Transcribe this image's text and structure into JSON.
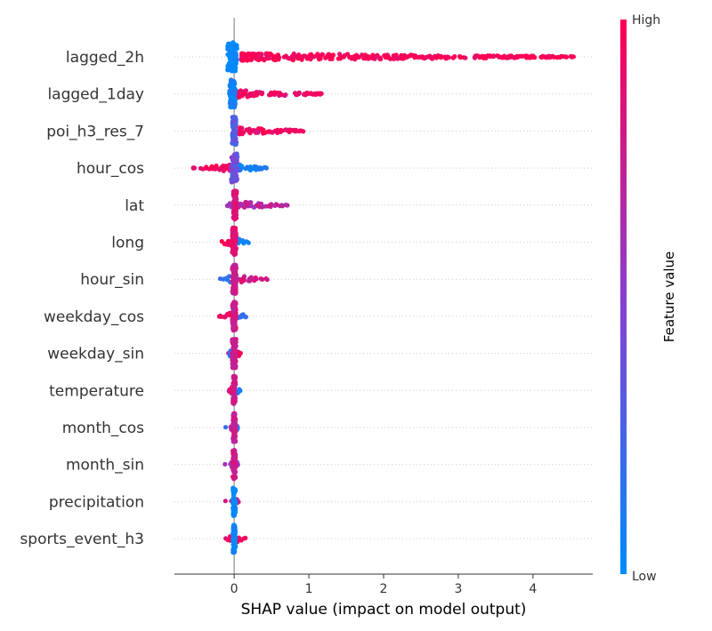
{
  "chart_data": {
    "type": "scatter",
    "subtype": "shap-beeswarm",
    "title": "",
    "xlabel": "SHAP value (impact on model output)",
    "ylabel": "",
    "xlim": [
      -0.8,
      4.8
    ],
    "xticks": [
      0,
      1,
      2,
      3,
      4
    ],
    "grid": false,
    "zero_line": true,
    "colorbar": {
      "label": "Feature value",
      "high_label": "High",
      "low_label": "Low",
      "low_color": "#008bfb",
      "high_color": "#ff0052"
    },
    "features": [
      {
        "name": "lagged_2h",
        "core": [
          -0.15,
          0.1
        ],
        "pos": [
          0.1,
          4.55
        ],
        "neg": null,
        "pos_color": 1.0,
        "neg_color": 0.0,
        "core_color": 0.0,
        "density": 1.0
      },
      {
        "name": "lagged_1day",
        "core": [
          -0.1,
          0.05
        ],
        "pos": [
          0.05,
          1.18
        ],
        "neg": null,
        "pos_color": 0.95,
        "neg_color": 0.0,
        "core_color": 0.05,
        "density": 0.9
      },
      {
        "name": "poi_h3_res_7",
        "core": [
          -0.05,
          0.05
        ],
        "pos": [
          0.05,
          0.95
        ],
        "neg": null,
        "pos_color": 0.95,
        "neg_color": 0.0,
        "core_color": 0.3,
        "density": 0.9
      },
      {
        "name": "hour_cos",
        "core": [
          -0.08,
          0.08
        ],
        "pos": [
          0.05,
          0.45
        ],
        "neg": [
          -0.55,
          -0.05
        ],
        "pos_color": 0.1,
        "neg_color": 0.95,
        "core_color": 0.4,
        "density": 1.0
      },
      {
        "name": "lat",
        "core": [
          -0.03,
          0.05
        ],
        "pos": [
          0.05,
          0.72
        ],
        "neg": [
          -0.1,
          0.0
        ],
        "pos_color": 0.7,
        "neg_color": 0.5,
        "core_color": 0.85,
        "density": 0.9
      },
      {
        "name": "long",
        "core": [
          -0.05,
          0.05
        ],
        "pos": [
          0.05,
          0.2
        ],
        "neg": [
          -0.2,
          -0.05
        ],
        "pos_color": 0.05,
        "neg_color": 0.95,
        "core_color": 0.85,
        "density": 0.8
      },
      {
        "name": "hour_sin",
        "core": [
          -0.05,
          0.05
        ],
        "pos": [
          0.05,
          0.45
        ],
        "neg": [
          -0.2,
          -0.05
        ],
        "pos_color": 0.8,
        "neg_color": 0.2,
        "core_color": 0.75,
        "density": 0.7
      },
      {
        "name": "weekday_cos",
        "core": [
          -0.05,
          0.05
        ],
        "pos": [
          0.05,
          0.18
        ],
        "neg": [
          -0.2,
          -0.05
        ],
        "pos_color": 0.2,
        "neg_color": 0.95,
        "core_color": 0.8,
        "density": 0.8
      },
      {
        "name": "weekday_sin",
        "core": [
          -0.05,
          0.05
        ],
        "pos": [
          0.05,
          0.1
        ],
        "neg": [
          -0.08,
          -0.05
        ],
        "pos_color": 0.95,
        "neg_color": 0.2,
        "core_color": 0.75,
        "density": 0.6
      },
      {
        "name": "temperature",
        "core": [
          -0.03,
          0.03
        ],
        "pos": [
          0.03,
          0.08
        ],
        "neg": [
          -0.08,
          -0.03
        ],
        "pos_color": 0.05,
        "neg_color": 0.95,
        "core_color": 0.75,
        "density": 0.6
      },
      {
        "name": "month_cos",
        "core": [
          -0.03,
          0.03
        ],
        "pos": [
          0.03,
          0.05
        ],
        "neg": [
          -0.05,
          -0.03
        ],
        "pos_color": 0.2,
        "neg_color": 0.7,
        "core_color": 0.75,
        "density": 0.5
      },
      {
        "name": "month_sin",
        "core": [
          -0.03,
          0.03
        ],
        "pos": [
          0.03,
          0.05
        ],
        "neg": [
          -0.05,
          -0.03
        ],
        "pos_color": 0.6,
        "neg_color": 0.6,
        "core_color": 0.8,
        "density": 0.5
      },
      {
        "name": "precipitation",
        "core": [
          -0.03,
          0.03
        ],
        "pos": [
          0.03,
          0.06
        ],
        "neg": null,
        "pos_color": 0.8,
        "neg_color": 0.0,
        "core_color": 0.02,
        "density": 0.5
      },
      {
        "name": "sports_event_h3",
        "core": [
          -0.03,
          0.03
        ],
        "pos": [
          0.03,
          0.15
        ],
        "neg": [
          -0.12,
          -0.03
        ],
        "pos_color": 0.95,
        "neg_color": 0.95,
        "core_color": 0.02,
        "density": 0.5
      }
    ]
  }
}
